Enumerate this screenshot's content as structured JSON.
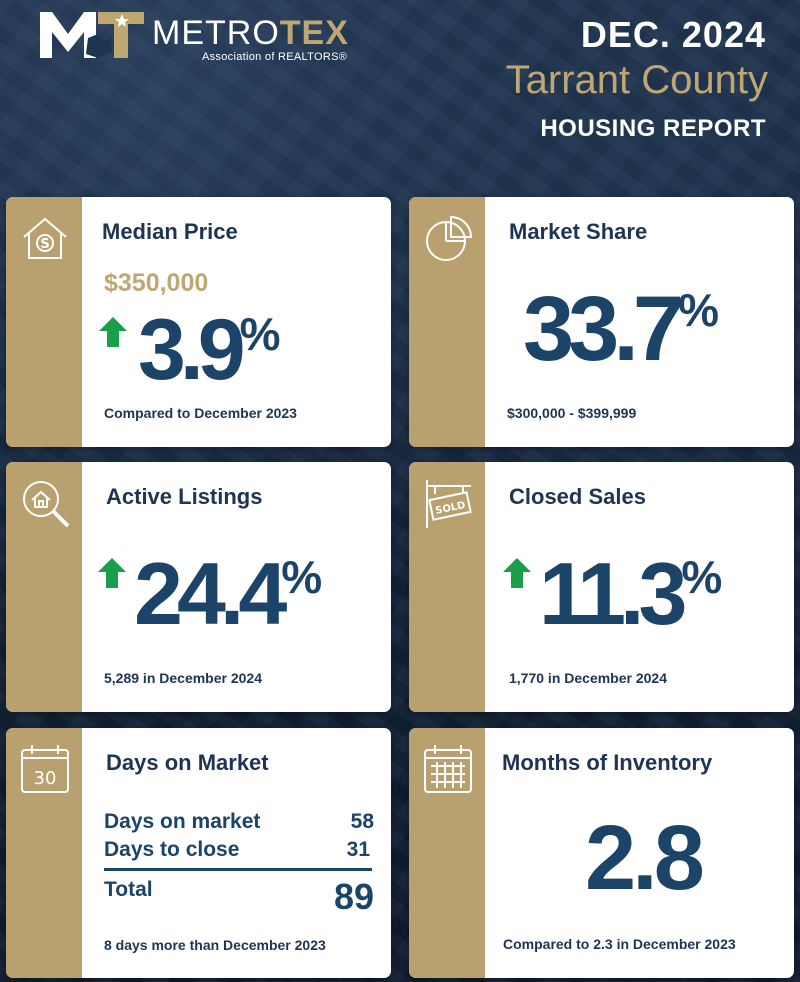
{
  "header": {
    "logo_mark": "MT",
    "logo_metro": "METRO",
    "logo_tex": "TEX",
    "logo_sub": "Association of REALTORS®",
    "date": "DEC. 2024",
    "county": "Tarrant County",
    "report": "HOUSING REPORT"
  },
  "colors": {
    "navy": "#1c4468",
    "gold": "#b8a16f",
    "up_green": "#1a9e4a",
    "background": "#13233a"
  },
  "cards": {
    "median_price": {
      "icon": "house-dollar-icon",
      "title": "Median Price",
      "price": "$350,000",
      "change": "3.9",
      "unit": "%",
      "direction": "up",
      "footer": "Compared to December 2023"
    },
    "market_share": {
      "icon": "pie-chart-icon",
      "title": "Market Share",
      "value": "33.7",
      "unit": "%",
      "footer": "$300,000 - $399,999"
    },
    "active_listings": {
      "icon": "house-magnifier-icon",
      "title": "Active Listings",
      "change": "24.4",
      "unit": "%",
      "direction": "up",
      "footer": "5,289 in December 2024"
    },
    "closed_sales": {
      "icon": "sold-sign-icon",
      "title": "Closed Sales",
      "change": "11.3",
      "unit": "%",
      "direction": "up",
      "footer": "1,770 in December 2024",
      "sign_text": "SOLD"
    },
    "days_on_market": {
      "icon": "calendar-30-icon",
      "calendar_number": "30",
      "title": "Days on Market",
      "rows": [
        {
          "label": "Days on market",
          "value": "58"
        },
        {
          "label": "Days to close",
          "value": "31"
        }
      ],
      "total_label": "Total",
      "total_value": "89",
      "footer": "8 days more than December 2023"
    },
    "months_inventory": {
      "icon": "calendar-grid-icon",
      "title": "Months of Inventory",
      "value": "2.8",
      "footer": "Compared to 2.3 in December 2023"
    }
  }
}
